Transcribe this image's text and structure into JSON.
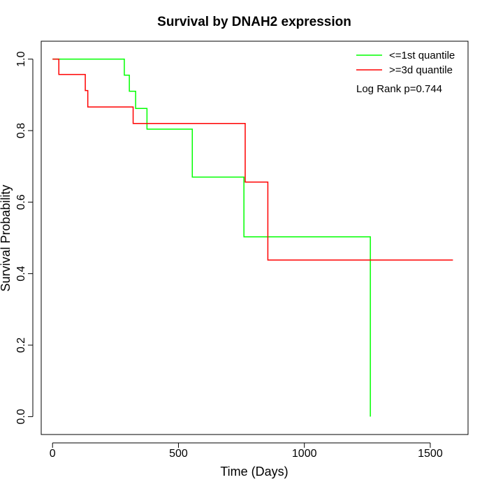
{
  "chart_data": {
    "type": "line",
    "step": true,
    "title": "Survival by DNAH2 expression",
    "xlabel": "Time (Days)",
    "ylabel": "Survival Probability",
    "xlim": [
      -45,
      1650
    ],
    "ylim": [
      -0.05,
      1.05
    ],
    "xticks": [
      0,
      500,
      1000,
      1500
    ],
    "xtick_labels": [
      "0",
      "500",
      "1000",
      "1500"
    ],
    "yticks": [
      0.0,
      0.2,
      0.4,
      0.6,
      0.8,
      1.0
    ],
    "ytick_labels": [
      "0.0",
      "0.2",
      "0.4",
      "0.6",
      "0.8",
      "1.0"
    ],
    "legend_position": "top-right",
    "annotation": "Log Rank p=0.744",
    "series": [
      {
        "name": "<=1st quantile",
        "color": "#00ff00",
        "x": [
          0,
          285,
          305,
          330,
          375,
          555,
          760,
          1262,
          1262
        ],
        "y": [
          1.0,
          0.955,
          0.91,
          0.862,
          0.804,
          0.67,
          0.503,
          0.503,
          0.0
        ]
      },
      {
        "name": ">=3d quantile",
        "color": "#ff0000",
        "x": [
          0,
          25,
          130,
          140,
          320,
          765,
          855,
          1590
        ],
        "y": [
          1.0,
          0.957,
          0.912,
          0.866,
          0.82,
          0.656,
          0.438,
          0.438
        ]
      }
    ]
  }
}
